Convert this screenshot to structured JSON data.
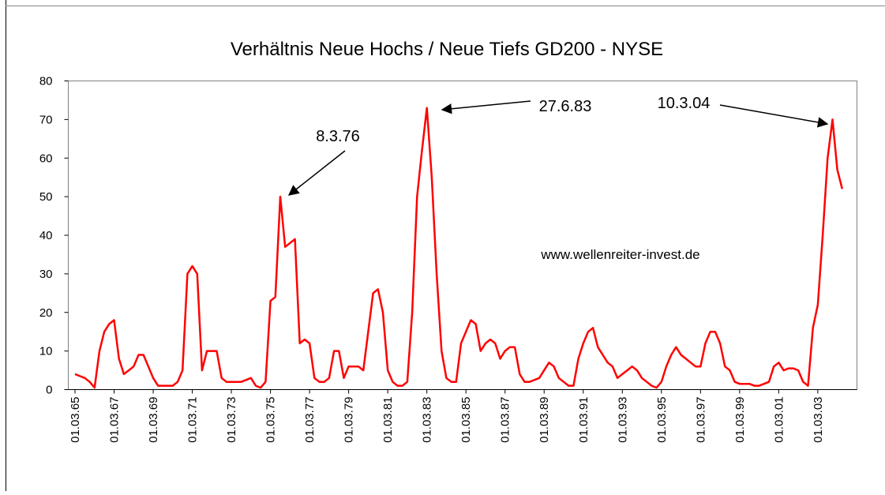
{
  "chart_data": {
    "type": "line",
    "title": "Verhältnis Neue Hochs / Neue Tiefs GD200 - NYSE",
    "categories": [
      "01.03.65",
      null,
      null,
      null,
      null,
      null,
      null,
      null,
      "01.03.67",
      null,
      null,
      null,
      null,
      null,
      null,
      null,
      "01.03.69",
      null,
      null,
      null,
      null,
      null,
      null,
      null,
      "01.03.71",
      null,
      null,
      null,
      null,
      null,
      null,
      null,
      "01.03.73",
      null,
      null,
      null,
      null,
      null,
      null,
      null,
      "01.03.75",
      null,
      null,
      null,
      null,
      null,
      null,
      null,
      "01.03.77",
      null,
      null,
      null,
      null,
      null,
      null,
      null,
      "01.03.79",
      null,
      null,
      null,
      null,
      null,
      null,
      null,
      "01.03.81",
      null,
      null,
      null,
      null,
      null,
      null,
      null,
      "01.03.83",
      null,
      null,
      null,
      null,
      null,
      null,
      null,
      "01.03.85",
      null,
      null,
      null,
      null,
      null,
      null,
      null,
      "01.03.87",
      null,
      null,
      null,
      null,
      null,
      null,
      null,
      "01.03.89",
      null,
      null,
      null,
      null,
      null,
      null,
      null,
      "01.03.91",
      null,
      null,
      null,
      null,
      null,
      null,
      null,
      "01.03.93",
      null,
      null,
      null,
      null,
      null,
      null,
      null,
      "01.03.95",
      null,
      null,
      null,
      null,
      null,
      null,
      null,
      "01.03.97",
      null,
      null,
      null,
      null,
      null,
      null,
      null,
      "01.03.99",
      null,
      null,
      null,
      null,
      null,
      null,
      null,
      "01.03.01",
      null,
      null,
      null,
      null,
      null,
      null,
      null,
      "01.03.03",
      null,
      null,
      null,
      null,
      null
    ],
    "series": [
      {
        "color": "#ff0000",
        "values": [
          4,
          3.5,
          3,
          2,
          0.5,
          10,
          15,
          17,
          18,
          8,
          4,
          5,
          6,
          9,
          9,
          6,
          3,
          1,
          1,
          1,
          1,
          2,
          5,
          30,
          32,
          30,
          5,
          10,
          10,
          10,
          3,
          2,
          2,
          2,
          2,
          2.5,
          3,
          1,
          0.5,
          2,
          23,
          24,
          50,
          37,
          38,
          39,
          12,
          13,
          12,
          3,
          2,
          2,
          3,
          10,
          10,
          3,
          6,
          6,
          6,
          5,
          15,
          25,
          26,
          20,
          5,
          2,
          1,
          1,
          2,
          20,
          50,
          62,
          73,
          55,
          30,
          10,
          3,
          2,
          2,
          12,
          15,
          18,
          17,
          10,
          12,
          13,
          12,
          8,
          10,
          11,
          11,
          4,
          2,
          2,
          2.5,
          3,
          5,
          7,
          6,
          3,
          2,
          1,
          1,
          8,
          12,
          15,
          16,
          11,
          9,
          7,
          6,
          3,
          4,
          5,
          6,
          5,
          3,
          2,
          1,
          0.5,
          2,
          6,
          9,
          11,
          9,
          8,
          7,
          6,
          6,
          12,
          15,
          15,
          12,
          6,
          5,
          2,
          1.5,
          1.5,
          1.5,
          1,
          1,
          1.5,
          2,
          6,
          7,
          5,
          5.5,
          5.5,
          5,
          2,
          1,
          16,
          22,
          40,
          60,
          70,
          57,
          52
        ]
      }
    ],
    "ylim": [
      0,
      80
    ],
    "yticks": [
      0,
      10,
      20,
      30,
      40,
      50,
      60,
      70,
      80
    ],
    "grid": false,
    "annotations": [
      "8.3.76",
      "27.6.83",
      "10.3.04",
      "www.wellenreiter-invest.de"
    ]
  }
}
